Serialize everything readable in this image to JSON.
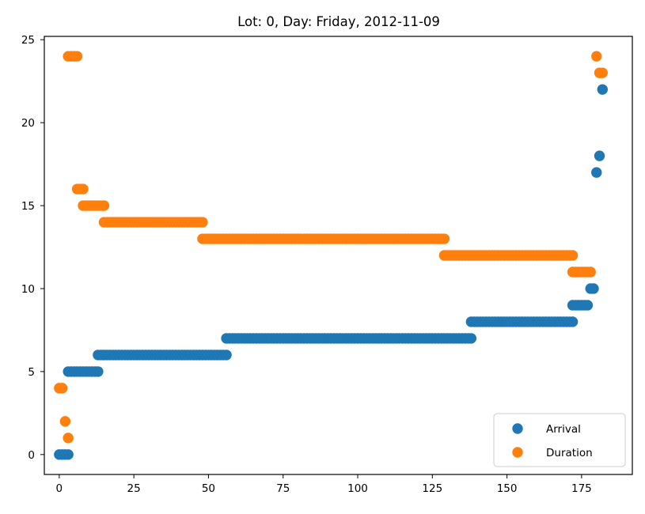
{
  "chart_data": {
    "type": "scatter",
    "title": "Lot: 0, Day: Friday, 2012-11-09",
    "xlabel": "",
    "ylabel": "",
    "xlim": [
      -5,
      192
    ],
    "ylim": [
      -1.2,
      25.2
    ],
    "xticks": [
      0,
      25,
      50,
      75,
      100,
      125,
      150,
      175
    ],
    "yticks": [
      0,
      5,
      10,
      15,
      20,
      25
    ],
    "grid": false,
    "legend_position": "lower right",
    "series": [
      {
        "name": "Arrival",
        "color": "#1f77b4",
        "segments": [
          {
            "from": 0,
            "to": 3,
            "y": 0
          },
          {
            "from": 3,
            "to": 13,
            "y": 5
          },
          {
            "from": 13,
            "to": 56,
            "y": 6
          },
          {
            "from": 56,
            "to": 138,
            "y": 7
          },
          {
            "from": 138,
            "to": 172,
            "y": 8
          },
          {
            "from": 172,
            "to": 177,
            "y": 9
          },
          {
            "from": 178,
            "to": 179,
            "y": 10
          }
        ],
        "points": [
          [
            180,
            17
          ],
          [
            181,
            18
          ],
          [
            182,
            22
          ]
        ]
      },
      {
        "name": "Duration",
        "color": "#ff7f0e",
        "segments": [
          {
            "from": 0,
            "to": 1,
            "y": 4
          },
          {
            "from": 3,
            "to": 6,
            "y": 24
          },
          {
            "from": 6,
            "to": 8,
            "y": 16
          },
          {
            "from": 8,
            "to": 15,
            "y": 15
          },
          {
            "from": 15,
            "to": 48,
            "y": 14
          },
          {
            "from": 48,
            "to": 129,
            "y": 13
          },
          {
            "from": 129,
            "to": 172,
            "y": 12
          },
          {
            "from": 172,
            "to": 178,
            "y": 11
          }
        ],
        "points": [
          [
            2,
            2
          ],
          [
            3,
            1
          ],
          [
            180,
            24
          ],
          [
            181,
            23
          ],
          [
            182,
            23
          ]
        ]
      }
    ]
  }
}
